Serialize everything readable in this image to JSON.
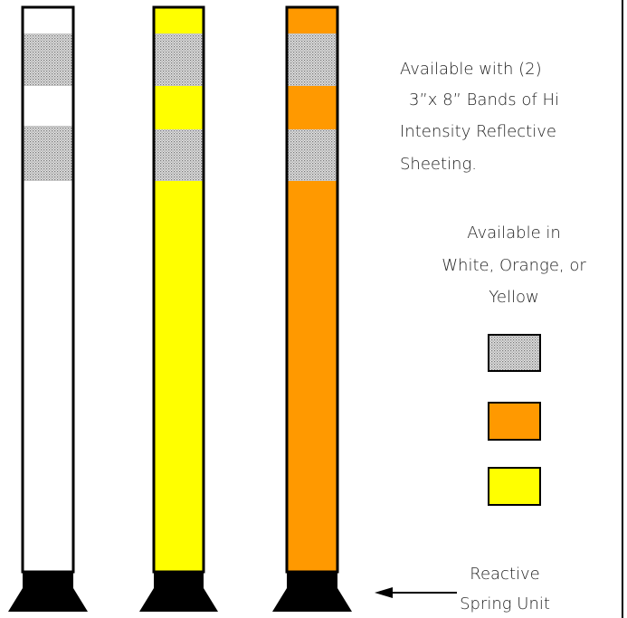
{
  "reflective_text": {
    "lines": [
      "Available with (2)",
      "3”x 8” Bands of Hi",
      "Intensity Reflective",
      "Sheeting."
    ]
  },
  "colors_text": {
    "lines": [
      "Available in",
      "White, Orange, or",
      "Yellow"
    ]
  },
  "spring_label": {
    "lines": [
      "Reactive",
      "Spring Unit"
    ]
  }
}
